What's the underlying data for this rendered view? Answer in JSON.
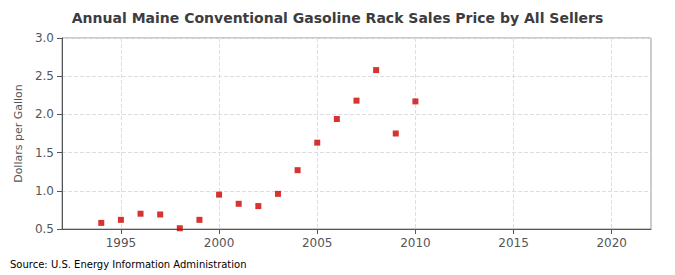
{
  "chart_data": {
    "type": "scatter",
    "title": "Annual Maine Conventional Gasoline Rack Sales Price by All Sellers",
    "ylabel": "Dollars per Gallon",
    "source": "Source: U.S. Energy Information Administration",
    "x": [
      1994,
      1995,
      1996,
      1997,
      1998,
      1999,
      2000,
      2001,
      2002,
      2003,
      2004,
      2005,
      2006,
      2007,
      2008,
      2009,
      2010
    ],
    "values": [
      0.58,
      0.62,
      0.7,
      0.69,
      0.51,
      0.62,
      0.95,
      0.83,
      0.8,
      0.96,
      1.27,
      1.63,
      1.94,
      2.18,
      2.58,
      1.75,
      2.17
    ],
    "color": "#cc0000",
    "marker": "square",
    "xlim": [
      1992,
      2022
    ],
    "xticks": [
      1995,
      2000,
      2005,
      2010,
      2015,
      2020
    ],
    "ylim": [
      0.5,
      3.0
    ],
    "yticks": [
      0.5,
      {
        "value": 1.0,
        "label": "1.0"
      },
      1.5,
      {
        "value": 2.0,
        "label": "2.0"
      },
      2.5,
      {
        "value": 3.0,
        "label": "3.0"
      }
    ],
    "grid": true
  }
}
